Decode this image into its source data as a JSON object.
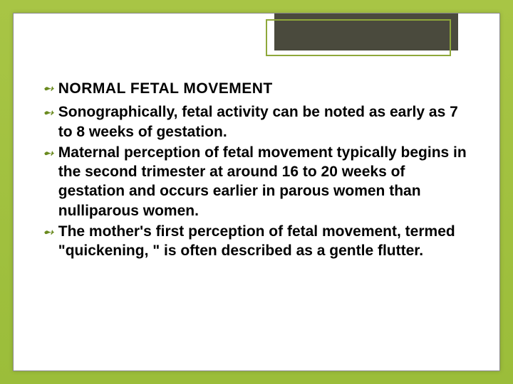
{
  "slide": {
    "background_gradient_top": "#a8c545",
    "background_gradient_bottom": "#9bbd3a",
    "inner_background": "#ffffff",
    "title_box_color": "#4a4a3d",
    "title_outline_color": "#8fa83a",
    "bullet_color": "#6a8a1f",
    "text_color": "#000000",
    "heading": "NORMAL FETAL MOVEMENT",
    "heading_fontsize": 21,
    "body_fontsize": 21,
    "bullets": [
      " Sonographically, fetal activity can be noted as early as 7 to 8 weeks of gestation.",
      "Maternal perception of fetal movement typically begins in the second trimester at around 16 to 20 weeks of gestation and occurs earlier in parous women than nulliparous women.",
      " The mother's first perception of fetal movement, termed \"quickening, \" is often described as a gentle flutter."
    ]
  }
}
